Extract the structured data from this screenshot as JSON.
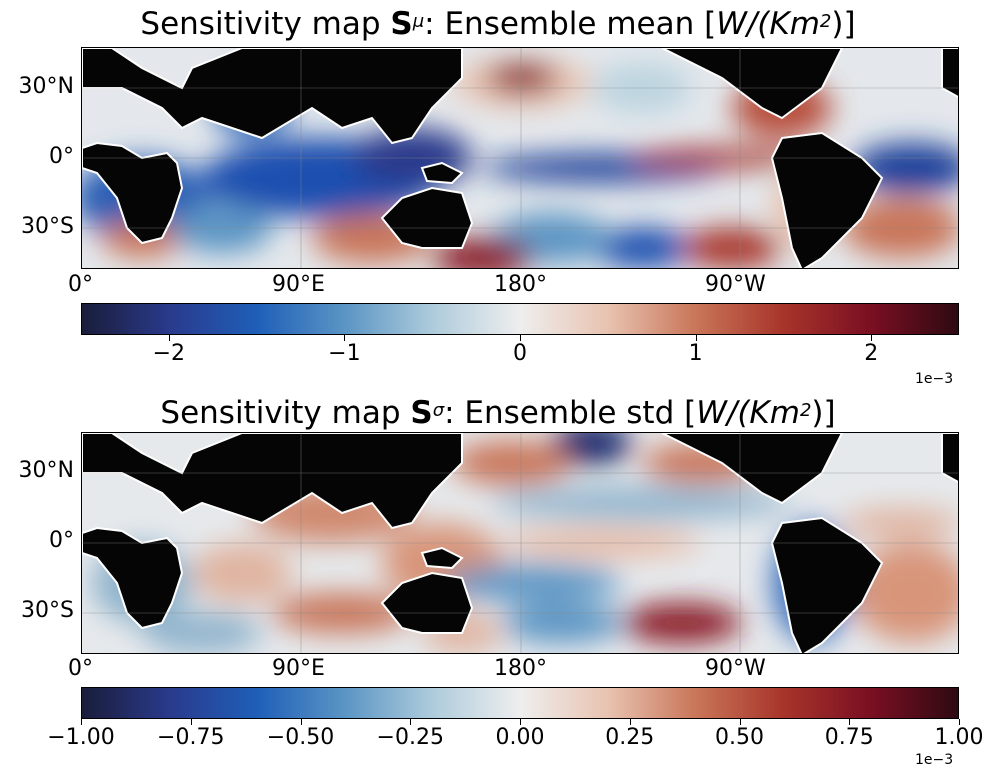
{
  "panels": [
    {
      "title_prefix": "Sensitivity map ",
      "title_symbol": "S",
      "title_superscript": "μ",
      "title_suffix": ": Ensemble mean [",
      "title_unit_main": "W/(Km",
      "title_unit_power": "2",
      "title_unit_close": ")]",
      "lat_labels": [
        "30°N",
        "0°",
        "30°S"
      ],
      "lon_labels": [
        "0°",
        "90°E",
        "180°",
        "90°W"
      ],
      "colorbar_ticks": [
        "−2",
        "−1",
        "0",
        "1",
        "2"
      ],
      "colorbar_range": [
        -2.5,
        2.5
      ],
      "colorbar_multiplier": "1e−3"
    },
    {
      "title_prefix": "Sensitivity map ",
      "title_symbol": "S",
      "title_superscript": "σ",
      "title_suffix": ": Ensemble std [",
      "title_unit_main": "W/(Km",
      "title_unit_power": "2",
      "title_unit_close": ")]",
      "lat_labels": [
        "30°N",
        "0°",
        "30°S"
      ],
      "lon_labels": [
        "0°",
        "90°E",
        "180°",
        "90°W"
      ],
      "colorbar_ticks": [
        "−1.00",
        "−0.75",
        "−0.50",
        "−0.25",
        "0.00",
        "0.25",
        "0.50",
        "0.75",
        "1.00"
      ],
      "colorbar_range": [
        -1.0,
        1.0
      ],
      "colorbar_multiplier": "1e−3"
    }
  ],
  "colors": {
    "land": "#050505",
    "cmap": [
      "#1a1d3a",
      "#2a3a8c",
      "#1f5fb8",
      "#5b95c4",
      "#aecbdb",
      "#eeeeee",
      "#e8c3b0",
      "#c9765a",
      "#a8352a",
      "#7a0f22",
      "#2e0a12"
    ]
  }
}
